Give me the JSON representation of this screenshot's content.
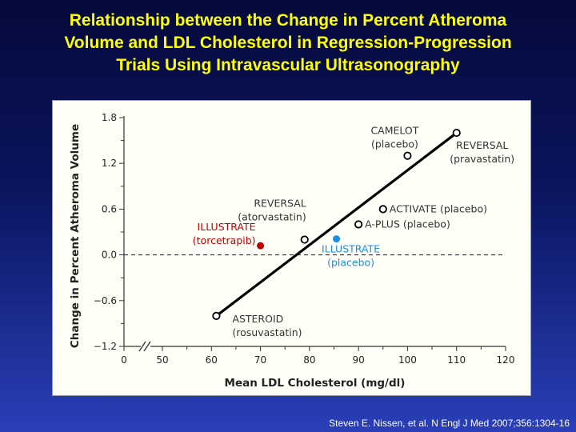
{
  "title_lines": [
    "Relationship between the Change in Percent Atheroma",
    "Volume and LDL Cholesterol in Regression-Progression",
    "Trials Using Intravascular Ultrasonography"
  ],
  "citation": "Steven E. Nissen, et al. N Engl J Med 2007;356:1304-16",
  "chart_data": {
    "type": "scatter",
    "xlabel": "Mean LDL Cholesterol (mg/dl)",
    "ylabel": "Change in Percent Atheroma Volume",
    "xlim": [
      0,
      120
    ],
    "ylim": [
      -1.2,
      1.8
    ],
    "x_axis_break": true,
    "x_ticks": [
      "0",
      "50",
      "60",
      "70",
      "80",
      "90",
      "100",
      "110",
      "120"
    ],
    "y_ticks": [
      "−1.2",
      "−0.6",
      "0.0",
      "0.6",
      "1.2",
      "1.8"
    ],
    "reference_line_y": 0.0,
    "regression_line": [
      {
        "x": 61,
        "y": -0.8
      },
      {
        "x": 110,
        "y": 1.6
      }
    ],
    "points": [
      {
        "x": 61,
        "y": -0.8,
        "label_lines": [
          "ASTEROID",
          "(rosuvastatin)"
        ],
        "style": "open",
        "color": "#000000",
        "label_color": "#333333"
      },
      {
        "x": 79,
        "y": 0.2,
        "label_lines": [
          "REVERSAL",
          "(atorvastatin)"
        ],
        "style": "open",
        "color": "#000000",
        "label_color": "#333333"
      },
      {
        "x": 90,
        "y": 0.4,
        "label_lines": [
          "A-PLUS (placebo)"
        ],
        "style": "open",
        "color": "#000000",
        "label_color": "#333333"
      },
      {
        "x": 95,
        "y": 0.6,
        "label_lines": [
          "ACTIVATE (placebo)"
        ],
        "style": "open",
        "color": "#000000",
        "label_color": "#333333"
      },
      {
        "x": 100,
        "y": 1.3,
        "label_lines": [
          "CAMELOT",
          "(placebo)"
        ],
        "style": "open",
        "color": "#000000",
        "label_color": "#333333"
      },
      {
        "x": 110,
        "y": 1.6,
        "label_lines": [
          "REVERSAL",
          "(pravastatin)"
        ],
        "style": "open",
        "color": "#000000",
        "label_color": "#333333"
      },
      {
        "x": 70,
        "y": 0.12,
        "label_lines": [
          "ILLUSTRATE",
          "(torcetrapib)"
        ],
        "style": "filled",
        "color": "#c00000",
        "label_color": "#c00000"
      },
      {
        "x": 85.5,
        "y": 0.21,
        "label_lines": [
          "ILLUSTRATE",
          "(placebo)"
        ],
        "style": "filled",
        "color": "#1a8fe0",
        "label_color": "#1a8fe0"
      }
    ]
  }
}
